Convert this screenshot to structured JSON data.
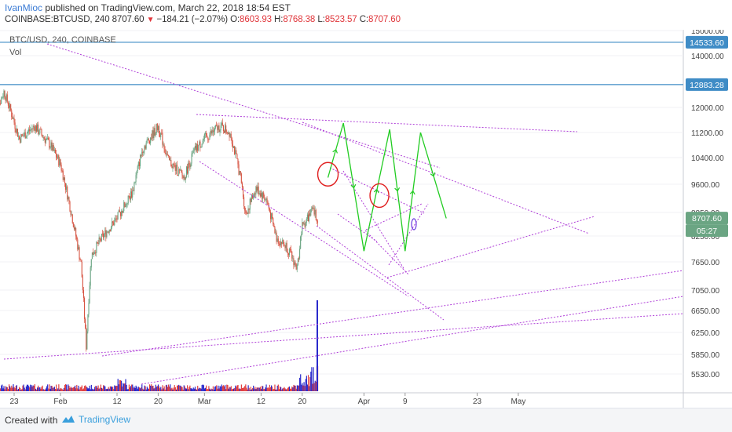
{
  "header": {
    "author": "IvanMioc",
    "published": " published on TradingView.com, March 22, 2018 18:54 EST",
    "symbol": "COINBASE:BTCUSD, 240",
    "price": "8707.60",
    "change": "−184.21 (−2.07%)",
    "o_label": "O:",
    "o": "8603.93",
    "h_label": "H:",
    "h": "8768.38",
    "l_label": "L:",
    "l": "8523.57",
    "c_label": "C:",
    "c": "8707.60"
  },
  "legend": {
    "series": "BTC/USD, 240, COINBASE",
    "volume": "Vol"
  },
  "price_tags": {
    "level1": "14533.60",
    "level2": "12883.28",
    "current": "8707.60",
    "countdown": "05:27"
  },
  "footer": {
    "created_with": "Created with",
    "brand": "TradingView"
  },
  "colors": {
    "up": "#6ba583",
    "down": "#d75442",
    "trend": "#b040d8",
    "projection": "#22cc22",
    "circle": "#e02020",
    "hline": "#3f8cc6",
    "vol_up": "#2a2acc",
    "vol_down": "#e04040"
  },
  "chart_data": {
    "type": "candlestick",
    "symbol": "BTC/USD",
    "interval": "240",
    "exchange": "COINBASE",
    "y_ticks": [
      15000,
      14000,
      12883.28,
      12000,
      11200,
      10400,
      9600,
      8850,
      8250,
      7650,
      7050,
      6650,
      6250,
      5850,
      5530
    ],
    "x_ticks": [
      "23",
      "Feb",
      "12",
      "20",
      "Mar",
      "12",
      "20",
      "Apr",
      "9",
      "23",
      "May"
    ],
    "horizontal_levels": [
      14533.6,
      12883.28
    ],
    "close_path": [
      {
        "t": "2018-01-19",
        "close": 11600
      },
      {
        "t": "2018-01-21",
        "close": 12600
      },
      {
        "t": "2018-01-24",
        "close": 11000
      },
      {
        "t": "2018-01-27",
        "close": 11400
      },
      {
        "t": "2018-01-30",
        "close": 10800
      },
      {
        "t": "2018-02-01",
        "close": 10200
      },
      {
        "t": "2018-02-03",
        "close": 8900
      },
      {
        "t": "2018-02-05",
        "close": 7600
      },
      {
        "t": "2018-02-06",
        "close": 6000
      },
      {
        "t": "2018-02-07",
        "close": 7800
      },
      {
        "t": "2018-02-09",
        "close": 8200
      },
      {
        "t": "2018-02-12",
        "close": 8700
      },
      {
        "t": "2018-02-15",
        "close": 9400
      },
      {
        "t": "2018-02-17",
        "close": 10700
      },
      {
        "t": "2018-02-20",
        "close": 11400
      },
      {
        "t": "2018-02-22",
        "close": 10300
      },
      {
        "t": "2018-02-25",
        "close": 9800
      },
      {
        "t": "2018-02-27",
        "close": 10600
      },
      {
        "t": "2018-03-01",
        "close": 11000
      },
      {
        "t": "2018-03-04",
        "close": 11400
      },
      {
        "t": "2018-03-06",
        "close": 11200
      },
      {
        "t": "2018-03-08",
        "close": 9800
      },
      {
        "t": "2018-03-09",
        "close": 8800
      },
      {
        "t": "2018-03-11",
        "close": 9500
      },
      {
        "t": "2018-03-13",
        "close": 9200
      },
      {
        "t": "2018-03-15",
        "close": 8200
      },
      {
        "t": "2018-03-17",
        "close": 8000
      },
      {
        "t": "2018-03-19",
        "close": 7500
      },
      {
        "t": "2018-03-20",
        "close": 8500
      },
      {
        "t": "2018-03-22",
        "close": 8900
      },
      {
        "t": "2018-03-23",
        "close": 8700
      }
    ],
    "projection_path": [
      {
        "t": "2018-03-25",
        "price": 9800
      },
      {
        "t": "2018-03-28",
        "price": 11500
      },
      {
        "t": "2018-04-01",
        "price": 7900
      },
      {
        "t": "2018-04-06",
        "price": 11300
      },
      {
        "t": "2018-04-09",
        "price": 7900
      },
      {
        "t": "2018-04-12",
        "price": 11200
      },
      {
        "t": "2018-04-17",
        "price": 8700
      }
    ]
  }
}
